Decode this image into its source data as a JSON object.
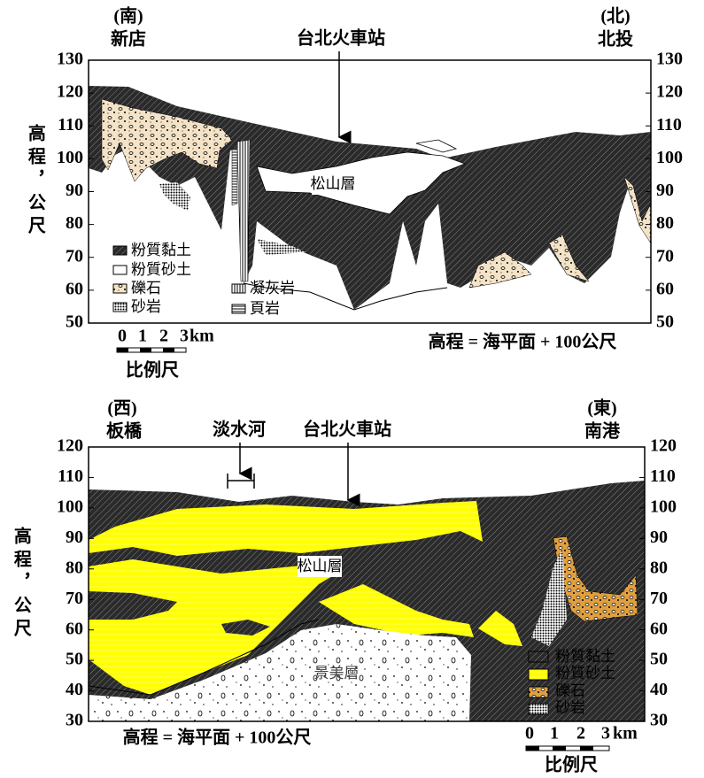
{
  "top": {
    "south": "(南)",
    "south_place": "新店",
    "north": "(北)",
    "north_place": "北投",
    "station": "台北火車站",
    "axis_title": "高程，公尺",
    "ylim": [
      50,
      130
    ],
    "yticks": [
      50,
      60,
      70,
      80,
      90,
      100,
      110,
      120,
      130
    ],
    "formation": "松山層",
    "legend": [
      "粉質黏土",
      "粉質砂土",
      "礫石",
      "砂岩",
      "凝灰岩",
      "頁岩"
    ],
    "note": "高程 = 海平面 + 100公尺",
    "scale": {
      "ticks": [
        0,
        1,
        2,
        3
      ],
      "unit": "km",
      "label": "比例尺"
    }
  },
  "bottom": {
    "west": "(西)",
    "west_place": "板橋",
    "river": "淡水河",
    "station": "台北火車站",
    "east": "(東)",
    "east_place": "南港",
    "axis_title": "高程，公尺",
    "ylim": [
      30,
      120
    ],
    "yticks": [
      30,
      40,
      50,
      60,
      70,
      80,
      90,
      100,
      110,
      120
    ],
    "formations": [
      "松山層",
      "景美層"
    ],
    "legend": [
      "粉質黏土",
      "粉質砂土",
      "礫石",
      "砂岩"
    ],
    "note": "高程 = 海平面 + 100公尺",
    "scale": {
      "ticks": [
        0,
        1,
        2,
        3
      ],
      "unit": "km",
      "label": "比例尺"
    }
  }
}
